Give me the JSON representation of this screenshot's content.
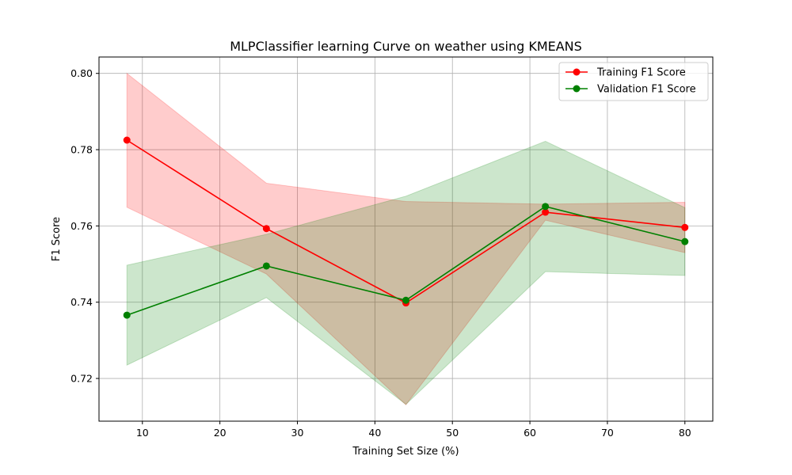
{
  "chart_data": {
    "type": "line",
    "title": "MLPClassifier learning Curve on weather using KMEANS",
    "xlabel": "Training Set Size (%)",
    "ylabel": "F1 Score",
    "xlim": [
      4.4,
      83.6
    ],
    "ylim": [
      0.7088,
      0.8043
    ],
    "x_ticks": [
      10,
      20,
      30,
      40,
      50,
      60,
      70,
      80
    ],
    "y_ticks": [
      0.72,
      0.74,
      0.76,
      0.78,
      0.8
    ],
    "x_tick_labels": [
      "10",
      "20",
      "30",
      "40",
      "50",
      "60",
      "70",
      "80"
    ],
    "y_tick_labels": [
      "0.72",
      "0.74",
      "0.76",
      "0.78",
      "0.80"
    ],
    "grid": true,
    "legend_position": "top-right",
    "x": [
      8,
      26,
      44,
      62,
      80
    ],
    "series": [
      {
        "name": "Training F1 Score",
        "color": "#ff0000",
        "fill_color": "#ff0000",
        "values": [
          0.7825,
          0.7593,
          0.7398,
          0.7636,
          0.7596
        ],
        "upper": [
          0.8,
          0.7712,
          0.7664,
          0.7657,
          0.7662
        ],
        "lower": [
          0.7649,
          0.7474,
          0.7131,
          0.7615,
          0.753
        ]
      },
      {
        "name": "Validation F1 Score",
        "color": "#008000",
        "fill_color": "#008000",
        "values": [
          0.7366,
          0.7495,
          0.7405,
          0.7651,
          0.7559
        ],
        "upper": [
          0.7497,
          0.7578,
          0.7678,
          0.7822,
          0.7648
        ],
        "lower": [
          0.7235,
          0.7412,
          0.7132,
          0.748,
          0.747
        ]
      }
    ]
  }
}
